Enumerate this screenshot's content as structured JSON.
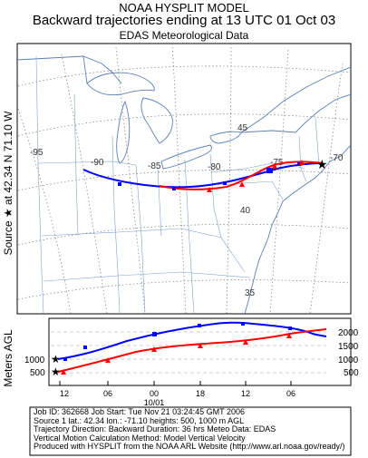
{
  "header": {
    "line1": "NOAA HYSPLIT MODEL",
    "line2": "Backward trajectories ending at 13 UTC 01 Oct 03",
    "line3": "EDAS Meteorological Data"
  },
  "sidebar": {
    "source_text": "Source ★ at   42.34 N   71.10 W"
  },
  "map": {
    "lon_labels": [
      "-95",
      "-90",
      "-85",
      "-80",
      "-75",
      "-70"
    ],
    "lat_labels": [
      "45",
      "40",
      "35"
    ],
    "source_marker": "★",
    "trajectories": [
      {
        "name": "500 m",
        "color": "#ff0000",
        "marker": "triangle"
      },
      {
        "name": "1000 m",
        "color": "#0000ff",
        "marker": "square"
      }
    ]
  },
  "profile": {
    "y_axis_title": "Meters AGL",
    "right_ticks": [
      "2000",
      "1500",
      "1000",
      "500"
    ],
    "left_ticks": [
      "1000",
      "500"
    ],
    "time_ticks": [
      "12",
      "06",
      "00",
      "18",
      "12",
      "06"
    ],
    "date_label": "10/01"
  },
  "info": {
    "line1": "Job ID: 362668       Job Start: Tue Nov 21 03:24:45 GMT 2006",
    "line2": "Source 1 lat.: 42.34  lon.: -71.10  heights: 500, 1000 m AGL",
    "line3": "Trajectory Direction: Backward    Duration: 36 hrs    Meteo Data: EDAS",
    "line4": "Vertical Motion Calculation Method: Model Vertical Velocity",
    "line5": "Produced with HYSPLIT from the NOAA ARL Website (http://www.arl.noaa.gov/ready/)"
  }
}
